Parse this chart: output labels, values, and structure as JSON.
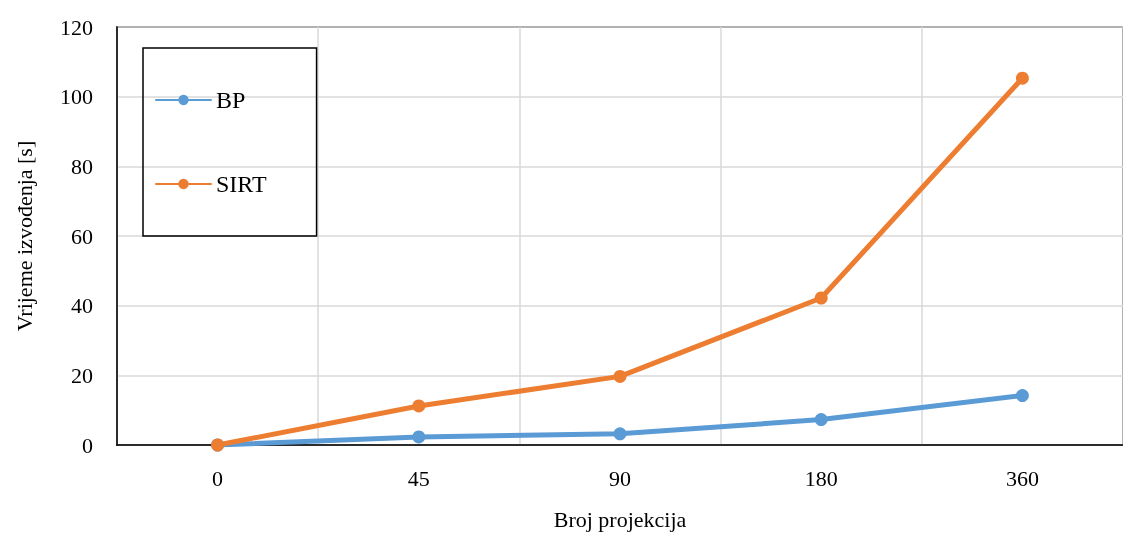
{
  "chart_data": {
    "type": "line",
    "xlabel": "Broj projekcija",
    "ylabel": "Vrijeme izvođenja [s]",
    "categories": [
      "0",
      "45",
      "90",
      "180",
      "360"
    ],
    "series": [
      {
        "name": "BP",
        "color": "#5b9bd5",
        "values": [
          0,
          2.3,
          3.2,
          7.3,
          14.2
        ]
      },
      {
        "name": "SIRT",
        "color": "#ed7d31",
        "values": [
          0,
          11.2,
          19.7,
          42.2,
          105.3
        ]
      }
    ],
    "ylim": [
      0,
      120
    ],
    "yticks": [
      0,
      20,
      40,
      60,
      80,
      100,
      120
    ],
    "grid": true,
    "legend": "top left",
    "marker": "circle",
    "line_style": "solid"
  }
}
